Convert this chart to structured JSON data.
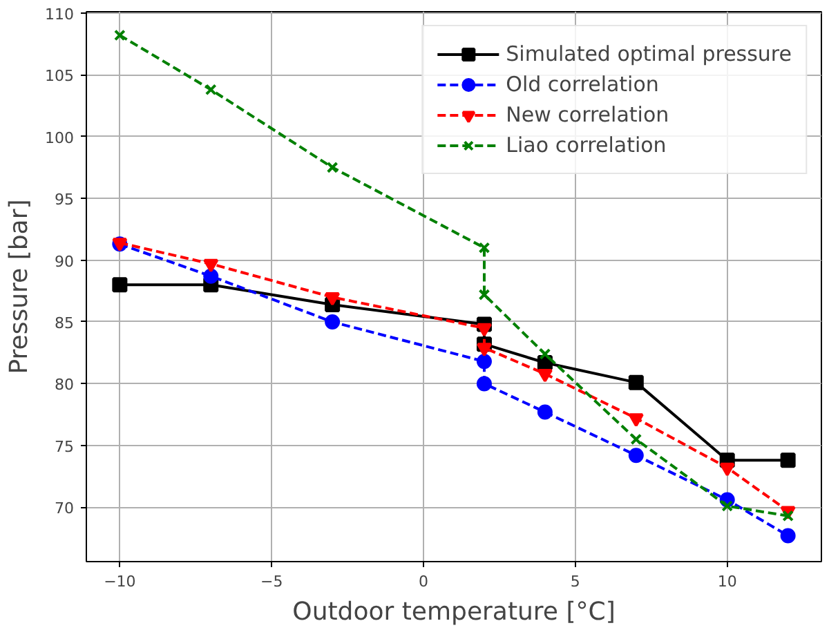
{
  "chart_data": {
    "type": "line",
    "xlabel": "Outdoor temperature [°C]",
    "ylabel": "Pressure [bar]",
    "x": [
      -10,
      -7,
      -3,
      2,
      2,
      4,
      7,
      10,
      12
    ],
    "xlim": [
      -11.1,
      13.1
    ],
    "ylim": [
      65.6,
      110.1
    ],
    "xticks": [
      {
        "value": -10,
        "label": "−10"
      },
      {
        "value": -5,
        "label": "−5"
      },
      0,
      5,
      10
    ],
    "yticks": [
      70,
      75,
      80,
      85,
      90,
      95,
      100,
      105,
      110
    ],
    "grid": true,
    "legend": "top right",
    "series": [
      {
        "name": "Simulated optimal pressure",
        "color": "#000000",
        "marker": "square",
        "line_style": "solid",
        "values": [
          88,
          88,
          86.4,
          84.8,
          83.2,
          81.7,
          80.1,
          73.8,
          73.8
        ]
      },
      {
        "name": "Old correlation",
        "color": "#0000ff",
        "marker": "circle",
        "line_style": "dashed",
        "values": [
          91.3,
          88.7,
          85,
          81.8,
          80,
          77.7,
          74.2,
          70.6,
          67.7
        ]
      },
      {
        "name": "New correlation",
        "color": "#ff0000",
        "marker": "triangle",
        "line_style": "dashed",
        "values": [
          91.4,
          89.7,
          87,
          84.5,
          82.9,
          80.8,
          77.2,
          73.2,
          69.7
        ]
      },
      {
        "name": "Liao correlation",
        "color": "#008000",
        "marker": "cross",
        "line_style": "dashed",
        "values": [
          108.2,
          103.8,
          97.5,
          91,
          87.2,
          82.4,
          75.5,
          70.1,
          69.3
        ]
      }
    ]
  }
}
